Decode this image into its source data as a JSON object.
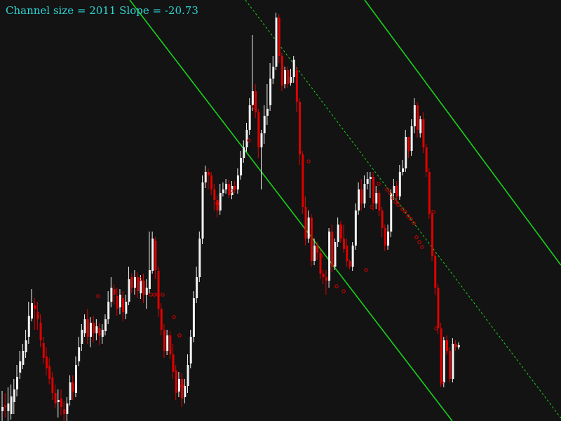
{
  "chart_data": {
    "type": "candlestick",
    "title": "Channel size = 2011 Slope = -20.73",
    "title_parts": {
      "channel_label": "Channel size = 2011",
      "slope_label": "Slope = -20.73"
    },
    "channel": {
      "size": 2011,
      "slope": -20.73,
      "lines": [
        "upper-bound",
        "mid-line",
        "lower-bound"
      ]
    },
    "xlabel": "",
    "ylabel": "",
    "ylim": [
      0,
      600
    ],
    "grid": false,
    "legend": "none",
    "colors": {
      "background": "#131313",
      "bullish": "#f2f2f2",
      "bearish": "#e00000",
      "channel": "#19d219",
      "marker": "#e00000",
      "title_text": "#2fd3d3"
    },
    "channel_lines": [
      {
        "name": "upper-bound",
        "style": "solid",
        "from": [
          520,
          0
        ],
        "to": [
          800,
          378
        ]
      },
      {
        "name": "mid-line",
        "style": "dashed",
        "from": [
          350,
          0
        ],
        "to": [
          800,
          596
        ]
      },
      {
        "name": "lower-bound",
        "style": "solid",
        "from": [
          185,
          0
        ],
        "to": [
          645,
          600
        ]
      }
    ],
    "candles": [
      [
        586,
        580,
        600,
        557
      ],
      [
        578,
        580,
        595,
        560
      ],
      [
        586,
        575,
        600,
        552
      ],
      [
        590,
        565,
        598,
        548
      ],
      [
        573,
        555,
        590,
        540
      ],
      [
        555,
        537,
        565,
        520
      ],
      [
        531,
        515,
        540,
        500
      ],
      [
        520,
        500,
        526,
        490
      ],
      [
        502,
        485,
        510,
        470
      ],
      [
        480,
        450,
        490,
        430
      ],
      [
        454,
        432,
        458,
        412
      ],
      [
        435,
        440,
        470,
        425
      ],
      [
        445,
        455,
        470,
        430
      ],
      [
        460,
        485,
        495,
        448
      ],
      [
        489,
        510,
        518,
        480
      ],
      [
        508,
        525,
        535,
        495
      ],
      [
        522,
        540,
        548,
        510
      ],
      [
        538,
        560,
        570,
        530
      ],
      [
        560,
        575,
        582,
        548
      ],
      [
        573,
        570,
        595,
        555
      ],
      [
        568,
        580,
        592,
        555
      ],
      [
        583,
        590,
        600,
        572
      ],
      [
        590,
        575,
        600,
        566
      ],
      [
        570,
        545,
        578,
        535
      ],
      [
        545,
        558,
        570,
        535
      ],
      [
        560,
        520,
        566,
        508
      ],
      [
        515,
        495,
        522,
        480
      ],
      [
        490,
        470,
        500,
        462
      ],
      [
        475,
        455,
        480,
        448
      ],
      [
        455,
        480,
        490,
        440
      ],
      [
        480,
        460,
        495,
        452
      ],
      [
        460,
        475,
        488,
        450
      ],
      [
        475,
        465,
        485,
        455
      ],
      [
        468,
        478,
        492,
        460
      ],
      [
        480,
        470,
        490,
        462
      ],
      [
        472,
        455,
        478,
        448
      ],
      [
        455,
        430,
        462,
        415
      ],
      [
        430,
        410,
        438,
        395
      ],
      [
        412,
        420,
        434,
        405
      ],
      [
        422,
        440,
        450,
        410
      ],
      [
        438,
        420,
        448,
        412
      ],
      [
        425,
        445,
        458,
        415
      ],
      [
        447,
        430,
        455,
        420
      ],
      [
        430,
        398,
        435,
        380
      ],
      [
        395,
        410,
        418,
        390
      ],
      [
        410,
        395,
        420,
        385
      ],
      [
        395,
        415,
        425,
        388
      ],
      [
        418,
        400,
        426,
        392
      ],
      [
        400,
        420,
        432,
        390
      ],
      [
        420,
        410,
        440,
        398
      ],
      [
        412,
        385,
        418,
        330
      ],
      [
        386,
        340,
        390,
        330
      ],
      [
        343,
        385,
        398,
        338
      ],
      [
        386,
        440,
        452,
        380
      ],
      [
        440,
        470,
        478,
        432
      ],
      [
        470,
        500,
        510,
        462
      ],
      [
        500,
        478,
        506,
        470
      ],
      [
        478,
        505,
        512,
        472
      ],
      [
        505,
        530,
        540,
        490
      ],
      [
        528,
        560,
        570,
        520
      ],
      [
        558,
        540,
        566,
        530
      ],
      [
        540,
        568,
        580,
        532
      ],
      [
        566,
        550,
        575,
        540
      ],
      [
        550,
        520,
        560,
        505
      ],
      [
        518,
        480,
        525,
        470
      ],
      [
        480,
        425,
        488,
        415
      ],
      [
        425,
        395,
        432,
        380
      ],
      [
        395,
        340,
        402,
        330
      ],
      [
        340,
        260,
        348,
        250
      ],
      [
        260,
        245,
        268,
        236
      ],
      [
        245,
        250,
        270,
        240
      ],
      [
        250,
        270,
        278,
        245
      ],
      [
        270,
        285,
        300,
        262
      ],
      [
        285,
        300,
        310,
        278
      ],
      [
        300,
        275,
        306,
        262
      ],
      [
        275,
        270,
        280,
        260
      ],
      [
        270,
        262,
        276,
        255
      ],
      [
        262,
        278,
        282,
        256
      ],
      [
        278,
        265,
        284,
        258
      ],
      [
        265,
        270,
        275,
        258
      ],
      [
        270,
        250,
        276,
        240
      ],
      [
        250,
        225,
        256,
        215
      ],
      [
        225,
        210,
        232,
        200
      ],
      [
        210,
        185,
        216,
        175
      ],
      [
        185,
        150,
        192,
        140
      ],
      [
        150,
        130,
        158,
        50
      ],
      [
        130,
        160,
        168,
        120
      ],
      [
        160,
        210,
        225,
        155
      ],
      [
        210,
        190,
        270,
        185
      ],
      [
        190,
        165,
        205,
        150
      ],
      [
        165,
        155,
        178,
        120
      ],
      [
        150,
        112,
        158,
        90
      ],
      [
        112,
        95,
        120,
        80
      ],
      [
        95,
        25,
        100,
        18
      ],
      [
        25,
        80,
        90,
        20
      ],
      [
        80,
        122,
        130,
        75
      ],
      [
        120,
        100,
        126,
        95
      ],
      [
        100,
        120,
        125,
        95
      ],
      [
        118,
        110,
        122,
        98
      ],
      [
        110,
        85,
        118,
        80
      ],
      [
        100,
        145,
        160,
        95
      ],
      [
        145,
        220,
        235,
        140
      ],
      [
        220,
        295,
        305,
        215
      ],
      [
        295,
        340,
        350,
        280
      ],
      [
        340,
        310,
        346,
        300
      ],
      [
        310,
        372,
        380,
        305
      ],
      [
        372,
        350,
        378,
        340
      ],
      [
        350,
        360,
        370,
        345
      ],
      [
        360,
        390,
        398,
        355
      ],
      [
        390,
        395,
        405,
        385
      ],
      [
        395,
        400,
        420,
        385
      ],
      [
        400,
        330,
        410,
        325
      ],
      [
        330,
        380,
        388,
        320
      ],
      [
        380,
        345,
        385,
        340
      ],
      [
        345,
        320,
        352,
        310
      ],
      [
        320,
        340,
        346,
        315
      ],
      [
        340,
        355,
        360,
        320
      ],
      [
        350,
        372,
        380,
        340
      ],
      [
        372,
        380,
        384,
        370
      ],
      [
        380,
        350,
        386,
        345
      ],
      [
        350,
        300,
        356,
        290
      ],
      [
        300,
        270,
        306,
        260
      ],
      [
        270,
        290,
        300,
        255
      ],
      [
        290,
        262,
        296,
        250
      ],
      [
        262,
        255,
        270,
        245
      ],
      [
        255,
        252,
        282,
        245
      ],
      [
        252,
        290,
        300,
        245
      ],
      [
        290,
        275,
        298,
        265
      ],
      [
        275,
        300,
        308,
        270
      ],
      [
        300,
        325,
        338,
        295
      ],
      [
        325,
        350,
        358,
        320
      ],
      [
        350,
        330,
        356,
        320
      ],
      [
        330,
        275,
        338,
        270
      ],
      [
        275,
        265,
        285,
        255
      ],
      [
        265,
        280,
        290,
        258
      ],
      [
        280,
        245,
        285,
        235
      ],
      [
        245,
        240,
        250,
        228
      ],
      [
        240,
        195,
        245,
        185
      ],
      [
        195,
        215,
        225,
        210
      ],
      [
        215,
        180,
        222,
        170
      ],
      [
        180,
        150,
        190,
        140
      ],
      [
        150,
        185,
        196,
        145
      ],
      [
        190,
        170,
        196,
        165
      ],
      [
        170,
        210,
        218,
        160
      ],
      [
        210,
        245,
        252,
        205
      ],
      [
        245,
        305,
        312,
        240
      ],
      [
        305,
        365,
        372,
        300
      ],
      [
        365,
        410,
        420,
        360
      ],
      [
        410,
        468,
        476,
        405
      ],
      [
        468,
        545,
        552,
        460
      ],
      [
        545,
        485,
        552,
        480
      ],
      [
        485,
        500,
        505,
        478
      ],
      [
        500,
        540,
        545,
        495
      ],
      [
        540,
        490,
        545,
        482
      ],
      [
        490,
        495,
        500,
        485
      ],
      [
        495,
        492,
        498,
        488
      ]
    ],
    "circle_markers": [
      [
        140,
        422
      ],
      [
        200,
        398
      ],
      [
        215,
        420
      ],
      [
        220,
        420
      ],
      [
        225,
        420
      ],
      [
        232,
        420
      ],
      [
        248,
        452
      ],
      [
        256,
        478
      ],
      [
        260,
        550
      ],
      [
        310,
        290
      ],
      [
        330,
        272
      ],
      [
        355,
        200
      ],
      [
        362,
        152
      ],
      [
        440,
        230
      ],
      [
        458,
        365
      ],
      [
        480,
        408
      ],
      [
        490,
        415
      ],
      [
        522,
        385
      ],
      [
        530,
        295
      ],
      [
        540,
        262
      ],
      [
        552,
        270
      ],
      [
        556,
        275
      ],
      [
        560,
        282
      ],
      [
        564,
        288
      ],
      [
        568,
        292
      ],
      [
        574,
        298
      ],
      [
        578,
        302
      ],
      [
        582,
        308
      ],
      [
        586,
        312
      ],
      [
        590,
        318
      ],
      [
        594,
        338
      ],
      [
        598,
        345
      ],
      [
        602,
        352
      ],
      [
        618,
        302
      ],
      [
        622,
        468
      ],
      [
        630,
        545
      ]
    ]
  }
}
